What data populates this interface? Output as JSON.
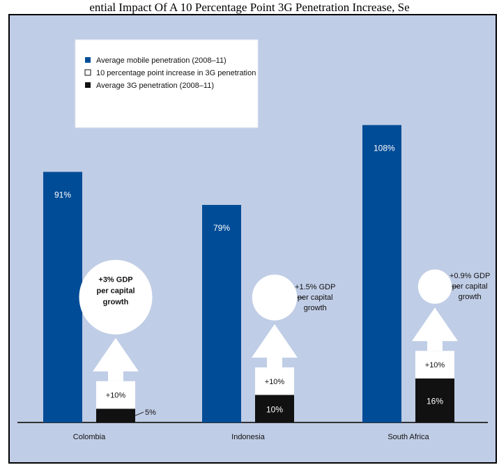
{
  "page": {
    "title": "ential Impact Of A 10 Percentage Point 3G Penetration Increase, Se"
  },
  "colors": {
    "background": "#c0cde6",
    "mobile": "#004c97",
    "increase": "#ffffff",
    "g3": "#111111",
    "axis": "#333333"
  },
  "chart_data": {
    "type": "bar",
    "title": "ential Impact Of A 10 Percentage Point 3G Penetration Increase, Se",
    "categories": [
      "Colombia",
      "Indonesia",
      "South Africa"
    ],
    "series": [
      {
        "name": "Average mobile penetration (2008–11)",
        "values": [
          91,
          79,
          108
        ]
      },
      {
        "name": "10 percentage point increase in 3G penetration",
        "values": [
          10,
          10,
          10
        ]
      },
      {
        "name": "Average 3G penetration (2008–11)",
        "values": [
          5,
          10,
          16
        ]
      }
    ],
    "mobile_labels": [
      "91%",
      "79%",
      "108%"
    ],
    "increase_labels": [
      "+10%",
      "+10%",
      "+10%"
    ],
    "g3_labels": [
      "5%",
      "10%",
      "16%"
    ],
    "gdp_annotations": [
      [
        "+3% GDP",
        "per capital",
        "growth"
      ],
      [
        "+1.5% GDP",
        "per capital",
        "growth"
      ],
      [
        "+0.9% GDP",
        "per capital",
        "growth"
      ]
    ],
    "gdp_growth_values": [
      3,
      1.5,
      0.9
    ],
    "ylim": [
      0,
      115
    ],
    "grid": false,
    "legend": {
      "placement": "top-left",
      "entries": [
        "Average mobile penetration (2008–11)",
        "10 percentage point increase in 3G penetration",
        "Average 3G penetration (2008–11)"
      ]
    }
  }
}
